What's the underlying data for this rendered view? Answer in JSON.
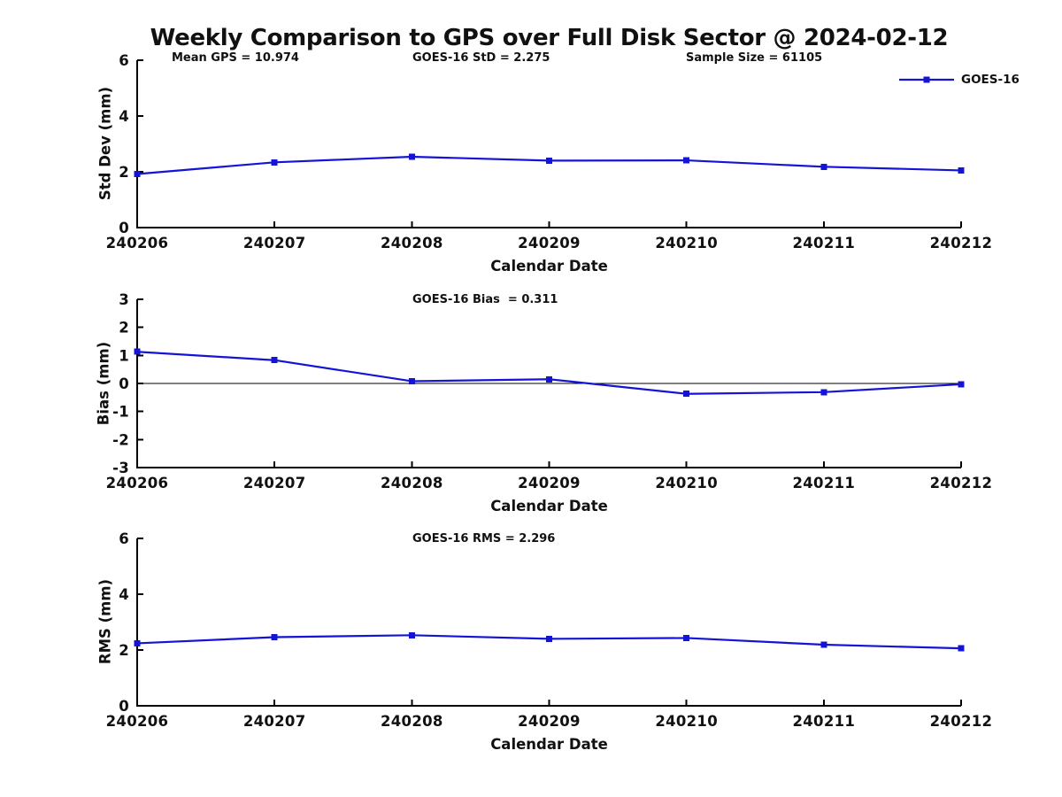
{
  "title": "Weekly Comparison to GPS over Full Disk Sector @ 2024-02-12",
  "legend": {
    "label": "GOES-16"
  },
  "colors": {
    "series": "#1414d6",
    "axis": "#000000",
    "text": "#111111"
  },
  "chart_data": [
    {
      "type": "line",
      "title": "",
      "x": [
        "240206",
        "240207",
        "240208",
        "240209",
        "240210",
        "240211",
        "240212"
      ],
      "series": [
        {
          "name": "GOES-16",
          "values": [
            1.92,
            2.34,
            2.54,
            2.4,
            2.41,
            2.18,
            2.05
          ]
        }
      ],
      "xlabel": "Calendar Date",
      "ylabel": "Std Dev (mm)",
      "ylim": [
        0,
        6
      ],
      "yticks": [
        0,
        2,
        4,
        6
      ],
      "grid": false,
      "zero_line": false,
      "marker": "square",
      "legend_position": "top-right",
      "annotations": [
        "Mean GPS = 10.974",
        "GOES-16 StD = 2.275",
        "Sample Size = 61105"
      ]
    },
    {
      "type": "line",
      "title": "",
      "x": [
        "240206",
        "240207",
        "240208",
        "240209",
        "240210",
        "240211",
        "240212"
      ],
      "series": [
        {
          "name": "GOES-16",
          "values": [
            1.13,
            0.83,
            0.08,
            0.15,
            -0.37,
            -0.31,
            -0.03
          ]
        }
      ],
      "xlabel": "Calendar Date",
      "ylabel": "Bias (mm)",
      "ylim": [
        -3,
        3
      ],
      "yticks": [
        3,
        2,
        1,
        0,
        -1,
        -2,
        -3
      ],
      "grid": false,
      "zero_line": true,
      "marker": "square",
      "legend_position": "none",
      "annotations": [
        "GOES-16 Bias  = 0.311"
      ]
    },
    {
      "type": "line",
      "title": "",
      "x": [
        "240206",
        "240207",
        "240208",
        "240209",
        "240210",
        "240211",
        "240212"
      ],
      "series": [
        {
          "name": "GOES-16",
          "values": [
            2.24,
            2.46,
            2.53,
            2.4,
            2.43,
            2.19,
            2.06
          ]
        }
      ],
      "xlabel": "Calendar Date",
      "ylabel": "RMS (mm)",
      "ylim": [
        0,
        6
      ],
      "yticks": [
        0,
        2,
        4,
        6
      ],
      "grid": false,
      "zero_line": false,
      "marker": "square",
      "legend_position": "none",
      "annotations": [
        "GOES-16 RMS = 2.296"
      ]
    }
  ]
}
